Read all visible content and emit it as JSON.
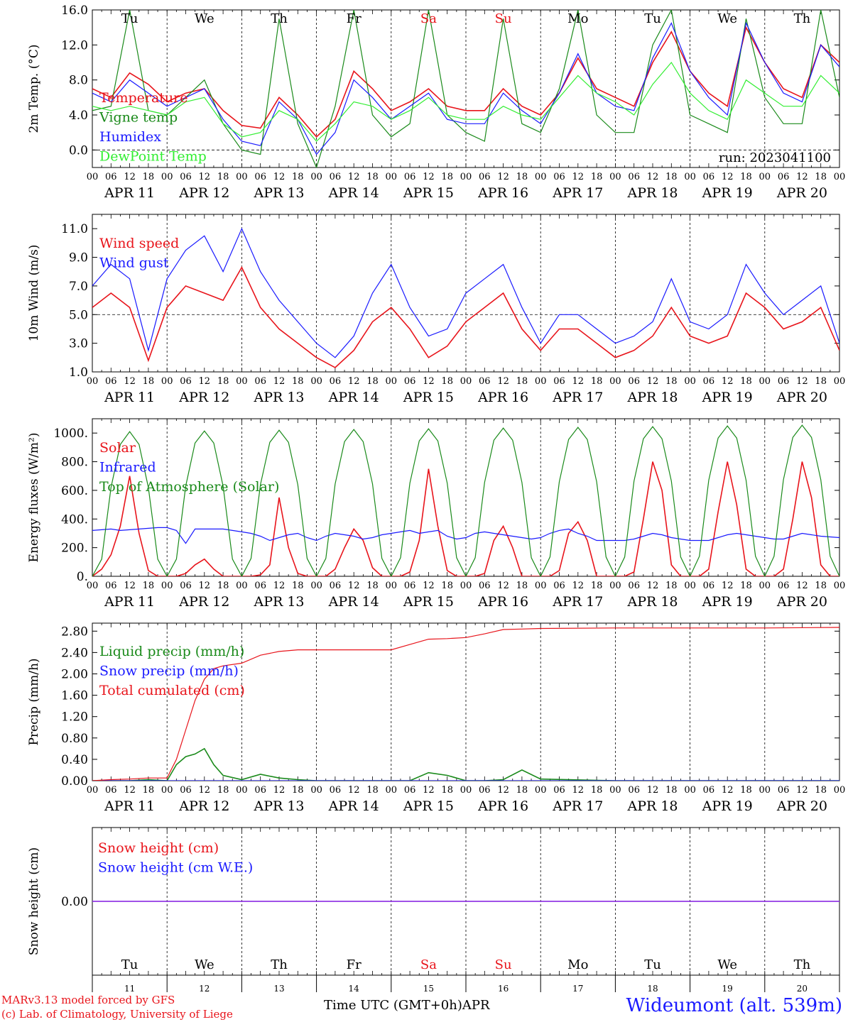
{
  "colors": {
    "red": "#e8141b",
    "green": "#1a8a1a",
    "blue": "#1a1aff",
    "lightgreen": "#33ee33",
    "purple": "#8a2be2",
    "black": "#000000"
  },
  "days": {
    "weekday_labels": [
      "Tu",
      "We",
      "Th",
      "Fr",
      "Sa",
      "Su",
      "Mo",
      "Tu",
      "We",
      "Th"
    ],
    "weekend_flags": [
      false,
      false,
      false,
      false,
      true,
      true,
      false,
      false,
      false,
      false
    ],
    "date_labels": [
      "APR 11",
      "APR 12",
      "APR 13",
      "APR 14",
      "APR 15",
      "APR 16",
      "APR 17",
      "APR 18",
      "APR 19",
      "APR 20"
    ],
    "day_numbers": [
      "11",
      "12",
      "13",
      "14",
      "15",
      "16",
      "17",
      "18",
      "19",
      "20"
    ],
    "hour_labels": [
      "00",
      "06",
      "12",
      "18"
    ],
    "final_hour_label": "00"
  },
  "chart_data": [
    {
      "type": "line",
      "ylabel": "2m Temp. (°C)",
      "ylim": [
        -2,
        16
      ],
      "yticks": [
        "0.0",
        "4.0",
        "8.0",
        "12.0",
        "16.0"
      ],
      "ytick_values": [
        0,
        4,
        8,
        12,
        16
      ],
      "ref_line": 0,
      "run_label": "run: 2023041100",
      "x_hours": [
        0,
        6,
        12,
        18,
        24,
        30,
        36,
        42,
        48,
        54,
        60,
        66,
        72,
        78,
        84,
        90,
        96,
        102,
        108,
        114,
        120,
        126,
        132,
        138,
        144,
        150,
        156,
        162,
        168,
        174,
        180,
        186,
        192,
        198,
        204,
        210,
        216,
        222,
        228,
        234,
        240
      ],
      "series": [
        {
          "name": "Temperature",
          "color_key": "red",
          "values": [
            7.0,
            6.0,
            8.8,
            7.5,
            5.5,
            6.5,
            7.0,
            4.5,
            2.8,
            2.5,
            6.0,
            4.0,
            1.5,
            3.5,
            9.0,
            7.0,
            4.5,
            5.5,
            7.0,
            5.0,
            4.5,
            4.5,
            7.0,
            5.0,
            4.0,
            6.5,
            10.5,
            7.0,
            6.0,
            5.0,
            10.0,
            13.5,
            9.0,
            6.5,
            5.0,
            14.0,
            10.0,
            7.0,
            6.0,
            12.0,
            10.0
          ]
        },
        {
          "name": "Vigne temp",
          "color_key": "green",
          "values": [
            4.5,
            5.0,
            16.0,
            4.5,
            4.0,
            6.0,
            8.0,
            3.0,
            0.0,
            -0.5,
            15.0,
            3.0,
            -2.0,
            5.0,
            16.0,
            4.0,
            1.5,
            3.0,
            16.0,
            4.0,
            2.0,
            1.0,
            15.0,
            3.0,
            2.0,
            7.0,
            16.0,
            4.0,
            2.0,
            2.0,
            12.0,
            16.0,
            4.0,
            3.0,
            2.0,
            15.0,
            6.0,
            3.0,
            3.0,
            16.0,
            6.0
          ]
        },
        {
          "name": "Humidex",
          "color_key": "blue",
          "values": [
            6.5,
            5.5,
            8.0,
            6.5,
            5.0,
            6.0,
            7.0,
            3.5,
            1.0,
            0.5,
            5.5,
            3.5,
            -0.5,
            2.0,
            8.0,
            6.0,
            3.5,
            5.0,
            6.5,
            3.5,
            3.0,
            3.0,
            6.5,
            4.5,
            3.0,
            6.5,
            11.0,
            6.5,
            5.0,
            4.5,
            10.5,
            14.5,
            9.0,
            6.0,
            4.0,
            14.5,
            10.0,
            6.5,
            5.5,
            12.0,
            9.5
          ]
        },
        {
          "name": "DewPoint Temp",
          "color_key": "lightgreen",
          "values": [
            5.0,
            4.5,
            5.0,
            4.5,
            4.0,
            5.5,
            6.0,
            3.0,
            1.5,
            2.0,
            4.5,
            3.5,
            1.0,
            3.0,
            5.5,
            5.0,
            3.5,
            4.5,
            6.0,
            4.0,
            3.5,
            3.5,
            5.0,
            4.0,
            3.5,
            6.0,
            8.5,
            6.5,
            5.5,
            4.0,
            7.5,
            10.0,
            6.5,
            4.5,
            3.5,
            8.0,
            6.5,
            5.0,
            5.0,
            8.5,
            6.5
          ]
        }
      ],
      "legend": [
        "Temperature",
        "Vigne temp",
        "Humidex",
        "DewPoint Temp"
      ]
    },
    {
      "type": "line",
      "ylabel": "10m Wind (m/s)",
      "ylim": [
        1,
        12
      ],
      "yticks": [
        "1.0",
        "3.0",
        "5.0",
        "7.0",
        "9.0",
        "11.0"
      ],
      "ytick_values": [
        1,
        3,
        5,
        7,
        9,
        11
      ],
      "ref_line": 5,
      "x_hours": [
        0,
        6,
        12,
        18,
        24,
        30,
        36,
        42,
        48,
        54,
        60,
        66,
        72,
        78,
        84,
        90,
        96,
        102,
        108,
        114,
        120,
        126,
        132,
        138,
        144,
        150,
        156,
        162,
        168,
        174,
        180,
        186,
        192,
        198,
        204,
        210,
        216,
        222,
        228,
        234,
        240
      ],
      "series": [
        {
          "name": "Wind speed",
          "color_key": "red",
          "values": [
            5.5,
            6.5,
            5.5,
            1.8,
            5.5,
            7.0,
            6.5,
            6.0,
            8.3,
            5.5,
            4.0,
            3.0,
            2.0,
            1.3,
            2.5,
            4.5,
            5.5,
            4.0,
            2.0,
            2.8,
            4.5,
            5.5,
            6.5,
            4.0,
            2.5,
            4.0,
            4.0,
            3.0,
            2.0,
            2.5,
            3.5,
            5.5,
            3.5,
            3.0,
            3.5,
            6.5,
            5.5,
            4.0,
            4.5,
            5.5,
            2.5
          ]
        },
        {
          "name": "Wind gust",
          "color_key": "blue",
          "values": [
            7.0,
            8.5,
            7.5,
            2.5,
            7.5,
            9.5,
            10.5,
            8.0,
            11.0,
            8.0,
            6.0,
            4.5,
            3.0,
            2.0,
            3.5,
            6.5,
            8.5,
            5.5,
            3.5,
            4.0,
            6.5,
            7.5,
            8.5,
            5.5,
            3.0,
            5.0,
            5.0,
            4.0,
            3.0,
            3.5,
            4.5,
            7.5,
            4.5,
            4.0,
            5.0,
            8.5,
            6.5,
            5.0,
            6.0,
            7.0,
            3.0
          ]
        }
      ],
      "legend": [
        "Wind speed",
        "Wind gust"
      ]
    },
    {
      "type": "line",
      "ylabel": "Energy fluxes (W/m²)",
      "ylim": [
        0,
        1100
      ],
      "yticks": [
        "0.",
        "200.",
        "400.",
        "600.",
        "800.",
        "1000."
      ],
      "ytick_values": [
        0,
        200,
        400,
        600,
        800,
        1000
      ],
      "x_hours": [
        0,
        3,
        6,
        9,
        12,
        15,
        18,
        21,
        24,
        27,
        30,
        33,
        36,
        39,
        42,
        45,
        48,
        51,
        54,
        57,
        60,
        63,
        66,
        69,
        72,
        75,
        78,
        81,
        84,
        87,
        90,
        93,
        96,
        99,
        102,
        105,
        108,
        111,
        114,
        117,
        120,
        123,
        126,
        129,
        132,
        135,
        138,
        141,
        144,
        147,
        150,
        153,
        156,
        159,
        162,
        165,
        168,
        171,
        174,
        177,
        180,
        183,
        186,
        189,
        192,
        195,
        198,
        201,
        204,
        207,
        210,
        213,
        216,
        219,
        222,
        225,
        228,
        231,
        234,
        237,
        240
      ],
      "series": [
        {
          "name": "Solar",
          "color_key": "red",
          "values": [
            0,
            50,
            150,
            350,
            700,
            300,
            40,
            0,
            0,
            0,
            20,
            80,
            120,
            50,
            0,
            0,
            0,
            0,
            10,
            80,
            550,
            200,
            20,
            0,
            0,
            0,
            50,
            200,
            330,
            250,
            60,
            0,
            0,
            0,
            30,
            250,
            750,
            350,
            40,
            0,
            0,
            0,
            20,
            250,
            350,
            200,
            0,
            0,
            0,
            0,
            40,
            300,
            380,
            250,
            0,
            0,
            0,
            0,
            30,
            400,
            800,
            600,
            80,
            0,
            0,
            0,
            50,
            450,
            800,
            500,
            50,
            0,
            0,
            0,
            50,
            400,
            800,
            550,
            80,
            0,
            0
          ]
        },
        {
          "name": "Infrared",
          "color_key": "blue",
          "values": [
            320,
            325,
            330,
            320,
            325,
            330,
            335,
            340,
            340,
            320,
            230,
            330,
            330,
            330,
            330,
            320,
            310,
            300,
            280,
            250,
            270,
            290,
            300,
            270,
            250,
            280,
            300,
            290,
            280,
            260,
            270,
            290,
            300,
            310,
            320,
            300,
            310,
            320,
            280,
            260,
            270,
            300,
            310,
            300,
            290,
            280,
            270,
            260,
            270,
            300,
            320,
            330,
            300,
            280,
            250,
            250,
            250,
            250,
            260,
            280,
            300,
            290,
            270,
            260,
            250,
            250,
            250,
            270,
            290,
            300,
            290,
            280,
            270,
            260,
            260,
            280,
            300,
            290,
            280,
            275,
            270
          ]
        },
        {
          "name": "Top of Atmosphere (Solar)",
          "color_key": "green",
          "values": [
            0,
            120,
            620,
            920,
            1010,
            920,
            620,
            120,
            0,
            120,
            630,
            930,
            1015,
            930,
            630,
            120,
            0,
            125,
            640,
            935,
            1020,
            935,
            640,
            125,
            0,
            125,
            645,
            940,
            1025,
            940,
            645,
            125,
            0,
            130,
            650,
            945,
            1030,
            945,
            650,
            130,
            0,
            130,
            655,
            950,
            1035,
            950,
            655,
            130,
            0,
            135,
            660,
            955,
            1040,
            955,
            660,
            135,
            0,
            135,
            665,
            960,
            1045,
            960,
            665,
            135,
            0,
            140,
            670,
            965,
            1050,
            965,
            670,
            140,
            0,
            140,
            675,
            970,
            1055,
            970,
            675,
            140,
            0
          ]
        }
      ],
      "legend": [
        "Solar",
        "Infrared",
        "Top of Atmosphere (Solar)"
      ]
    },
    {
      "type": "line",
      "ylabel": "Precip (mm/h)",
      "ylim": [
        0,
        2.95
      ],
      "yticks": [
        "0.00",
        "0.40",
        "0.80",
        "1.20",
        "1.60",
        "2.00",
        "2.40",
        "2.80"
      ],
      "ytick_values": [
        0,
        0.4,
        0.8,
        1.2,
        1.6,
        2.0,
        2.4,
        2.8
      ],
      "x_hours": [
        0,
        6,
        12,
        18,
        24,
        27,
        30,
        33,
        36,
        39,
        42,
        48,
        54,
        60,
        66,
        72,
        84,
        96,
        102,
        108,
        114,
        120,
        126,
        132,
        138,
        144,
        168,
        192,
        216,
        240
      ],
      "series": [
        {
          "name": "Liquid precip (mm/h)",
          "color_key": "green",
          "values": [
            0,
            0,
            0,
            0.02,
            0.0,
            0.3,
            0.45,
            0.5,
            0.6,
            0.3,
            0.1,
            0.02,
            0.12,
            0.05,
            0.02,
            0.0,
            0.0,
            0.0,
            0.0,
            0.15,
            0.1,
            0.0,
            0.0,
            0.02,
            0.2,
            0.03,
            0.0,
            0.0,
            0.0,
            0.0
          ]
        },
        {
          "name": "Snow precip (mm/h)",
          "color_key": "blue",
          "values": [
            0,
            0,
            0,
            0,
            0,
            0,
            0,
            0,
            0,
            0,
            0,
            0,
            0,
            0,
            0,
            0,
            0,
            0,
            0,
            0,
            0,
            0,
            0,
            0,
            0,
            0,
            0,
            0,
            0,
            0
          ]
        },
        {
          "name": "Total cumulated (cm)",
          "color_key": "red",
          "values": [
            0.0,
            0.02,
            0.03,
            0.05,
            0.05,
            0.4,
            0.95,
            1.5,
            1.9,
            2.1,
            2.15,
            2.2,
            2.35,
            2.42,
            2.45,
            2.45,
            2.45,
            2.45,
            2.55,
            2.65,
            2.66,
            2.68,
            2.75,
            2.83,
            2.84,
            2.85,
            2.86,
            2.86,
            2.86,
            2.87
          ]
        }
      ],
      "legend": [
        "Liquid precip (mm/h)",
        "Snow precip (mm/h)",
        "Total cumulated (cm)"
      ]
    },
    {
      "type": "line",
      "ylabel": "Snow height (cm)",
      "yticks": [
        "0.00"
      ],
      "ytick_values": [
        0
      ],
      "x_hours": [
        0,
        240
      ],
      "series": [
        {
          "name": "Snow height (cm)",
          "color_key": "red",
          "values": [
            0,
            0
          ]
        },
        {
          "name": "Snow height (cm W.E.)",
          "color_key": "blue",
          "values": [
            0,
            0
          ]
        }
      ],
      "legend": [
        "Snow height (cm)",
        "Snow height (cm W.E.)"
      ]
    }
  ],
  "footer": {
    "model_line": "MARv3.13 model forced by GFS",
    "credit_line": "(c) Lab. of Climatology, University of Liege",
    "time_axis_label": "Time UTC (GMT+0h)",
    "month_label": "APR",
    "station": "Wideumont (alt. 539m)"
  }
}
